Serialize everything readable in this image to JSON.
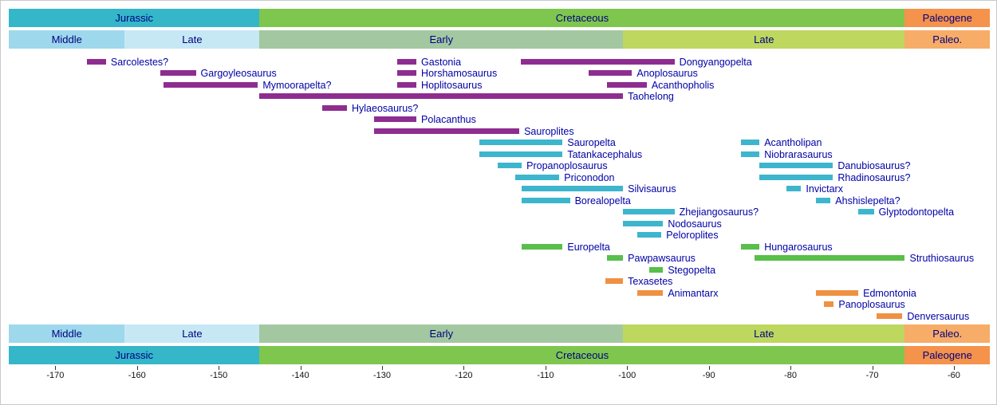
{
  "chart_data": {
    "type": "bar",
    "subtype": "geologic-timeline-range-chart",
    "x_axis": {
      "unit": "Ma",
      "min": -175.7,
      "max": -55.6,
      "ticks": [
        -170,
        -160,
        -150,
        -140,
        -130,
        -120,
        -110,
        -100,
        -90,
        -80,
        -70,
        -60
      ]
    },
    "colors": {
      "taxon_label": "#0000A6",
      "band_label": "#000080",
      "tick": "#333333"
    },
    "period_bands": [
      {
        "label": "Jurassic",
        "start": -175.7,
        "end": -145.0,
        "color": "#35B6C9"
      },
      {
        "label": "Cretaceous",
        "start": -145.0,
        "end": -66.0,
        "color": "#7FC64E"
      },
      {
        "label": "Paleogene",
        "start": -66.0,
        "end": -55.6,
        "color": "#F5924B"
      }
    ],
    "epoch_bands": [
      {
        "label": "Middle",
        "start": -175.7,
        "end": -161.5,
        "color": "#9ED8EC"
      },
      {
        "label": "Late",
        "start": -161.5,
        "end": -145.0,
        "color": "#C6E8F5"
      },
      {
        "label": "Early",
        "start": -145.0,
        "end": -100.5,
        "color": "#A3C8A1"
      },
      {
        "label": "Late",
        "start": -100.5,
        "end": -66.0,
        "color": "#BDD75F"
      },
      {
        "label": "Paleo.",
        "start": -66.0,
        "end": -55.6,
        "color": "#F7AC67"
      }
    ],
    "groups": {
      "purple": "#8E2D90",
      "teal": "#3DB6CD",
      "green": "#58BF4A",
      "orange": "#EF9143"
    },
    "taxa": [
      {
        "name": "Sarcolestes?",
        "row": 0,
        "group": "purple",
        "start": -166.1,
        "end": -163.8
      },
      {
        "name": "Gastonia",
        "row": 0,
        "group": "purple",
        "start": -128.1,
        "end": -125.8
      },
      {
        "name": "Dongyangopelta",
        "row": 0,
        "group": "purple",
        "start": -113.0,
        "end": -94.2
      },
      {
        "name": "Gargoyleosaurus",
        "row": 1,
        "group": "purple",
        "start": -157.1,
        "end": -152.8
      },
      {
        "name": "Horshamosaurus",
        "row": 1,
        "group": "purple",
        "start": -128.1,
        "end": -125.8
      },
      {
        "name": "Anoplosaurus",
        "row": 1,
        "group": "purple",
        "start": -104.7,
        "end": -99.4
      },
      {
        "name": "Mymoorapelta?",
        "row": 2,
        "group": "purple",
        "start": -156.8,
        "end": -145.2
      },
      {
        "name": "Hoplitosaurus",
        "row": 2,
        "group": "purple",
        "start": -128.1,
        "end": -125.8
      },
      {
        "name": "Acanthopholis",
        "row": 2,
        "group": "purple",
        "start": -102.5,
        "end": -97.6
      },
      {
        "name": "Taohelong",
        "row": 3,
        "group": "purple",
        "start": -145.0,
        "end": -100.5
      },
      {
        "name": "Hylaeosaurus?",
        "row": 4,
        "group": "purple",
        "start": -137.3,
        "end": -134.3
      },
      {
        "name": "Polacanthus",
        "row": 5,
        "group": "purple",
        "start": -131.0,
        "end": -125.8
      },
      {
        "name": "Sauroplites",
        "row": 6,
        "group": "purple",
        "start": -131.0,
        "end": -113.2
      },
      {
        "name": "Sauropelta",
        "row": 7,
        "group": "teal",
        "start": -118.1,
        "end": -107.9
      },
      {
        "name": "Acantholipan",
        "row": 7,
        "group": "teal",
        "start": -86.1,
        "end": -83.8
      },
      {
        "name": "Tatankacephalus",
        "row": 8,
        "group": "teal",
        "start": -118.1,
        "end": -107.9
      },
      {
        "name": "Niobrarasaurus",
        "row": 8,
        "group": "teal",
        "start": -86.1,
        "end": -83.8
      },
      {
        "name": "Propanoplosaurus",
        "row": 9,
        "group": "teal",
        "start": -115.8,
        "end": -112.9
      },
      {
        "name": "Danubiosaurus?",
        "row": 9,
        "group": "teal",
        "start": -83.8,
        "end": -74.8
      },
      {
        "name": "Priconodon",
        "row": 10,
        "group": "teal",
        "start": -113.7,
        "end": -108.3
      },
      {
        "name": "Rhadinosaurus?",
        "row": 10,
        "group": "teal",
        "start": -83.8,
        "end": -74.8
      },
      {
        "name": "Silvisaurus",
        "row": 11,
        "group": "teal",
        "start": -112.9,
        "end": -100.5
      },
      {
        "name": "Invictarx",
        "row": 11,
        "group": "teal",
        "start": -80.5,
        "end": -78.7
      },
      {
        "name": "Borealopelta",
        "row": 12,
        "group": "teal",
        "start": -112.9,
        "end": -107.0
      },
      {
        "name": "Ahshislepelta?",
        "row": 12,
        "group": "teal",
        "start": -76.9,
        "end": -75.1
      },
      {
        "name": "Zhejiangosaurus?",
        "row": 13,
        "group": "teal",
        "start": -100.5,
        "end": -94.2
      },
      {
        "name": "Glyptodontopelta",
        "row": 13,
        "group": "teal",
        "start": -71.7,
        "end": -69.8
      },
      {
        "name": "Nodosaurus",
        "row": 14,
        "group": "teal",
        "start": -100.5,
        "end": -95.6
      },
      {
        "name": "Peloroplites",
        "row": 15,
        "group": "teal",
        "start": -98.8,
        "end": -95.8
      },
      {
        "name": "Europelta",
        "row": 16,
        "group": "green",
        "start": -112.9,
        "end": -107.9
      },
      {
        "name": "Hungarosaurus",
        "row": 16,
        "group": "green",
        "start": -86.1,
        "end": -83.8
      },
      {
        "name": "Pawpawsaurus",
        "row": 17,
        "group": "green",
        "start": -102.5,
        "end": -100.5
      },
      {
        "name": "Struthiosaurus",
        "row": 17,
        "group": "green",
        "start": -84.4,
        "end": -66.0
      },
      {
        "name": "Stegopelta",
        "row": 18,
        "group": "green",
        "start": -97.3,
        "end": -95.6
      },
      {
        "name": "Texasetes",
        "row": 19,
        "group": "orange",
        "start": -102.7,
        "end": -100.5
      },
      {
        "name": "Animantarx",
        "row": 20,
        "group": "orange",
        "start": -98.8,
        "end": -95.6
      },
      {
        "name": "Edmontonia",
        "row": 20,
        "group": "orange",
        "start": -76.9,
        "end": -71.7
      },
      {
        "name": "Panoplosaurus",
        "row": 21,
        "group": "orange",
        "start": -75.9,
        "end": -74.7
      },
      {
        "name": "Denversaurus",
        "row": 22,
        "group": "orange",
        "start": -69.5,
        "end": -66.3
      }
    ]
  }
}
